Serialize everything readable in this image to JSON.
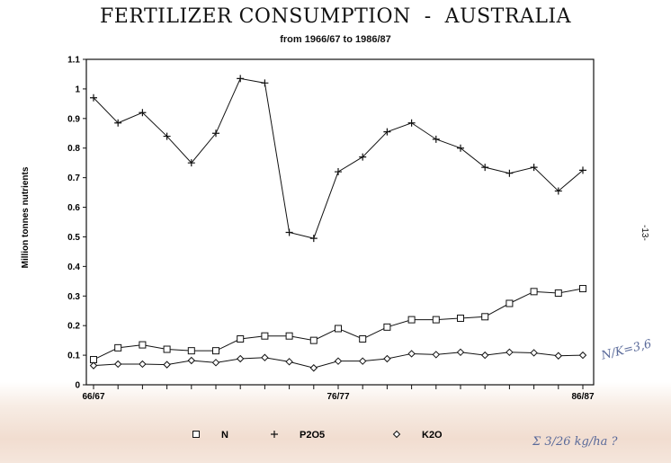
{
  "chart_data": {
    "type": "line",
    "title": "FERTILIZER CONSUMPTION  -  AUSTRALIA",
    "subtitle": "from 1966/67 to 1986/87",
    "ylabel": "Million tonnes nutrients",
    "xlabel": "",
    "ylim": [
      0,
      1.1
    ],
    "yticks": [
      "0",
      "0.1",
      "0.2",
      "0.3",
      "0.4",
      "0.5",
      "0.6",
      "0.7",
      "0.8",
      "0.9",
      "1",
      "1.1"
    ],
    "x": [
      "66/67",
      "67/68",
      "68/69",
      "69/70",
      "70/71",
      "71/72",
      "72/73",
      "73/74",
      "74/75",
      "75/76",
      "76/77",
      "77/78",
      "78/79",
      "79/80",
      "80/81",
      "81/82",
      "82/83",
      "83/84",
      "84/85",
      "85/86",
      "86/87"
    ],
    "xtick_labels": [
      "66/67",
      "76/77",
      "86/87"
    ],
    "series": [
      {
        "name": "N",
        "marker": "square",
        "values": [
          0.085,
          0.125,
          0.135,
          0.12,
          0.115,
          0.115,
          0.155,
          0.165,
          0.165,
          0.15,
          0.19,
          0.155,
          0.195,
          0.22,
          0.22,
          0.225,
          0.23,
          0.275,
          0.315,
          0.31,
          0.325
        ]
      },
      {
        "name": "P2O5",
        "marker": "plus",
        "values": [
          0.97,
          0.885,
          0.92,
          0.84,
          0.75,
          0.85,
          1.035,
          1.02,
          0.515,
          0.495,
          0.72,
          0.77,
          0.855,
          0.885,
          0.83,
          0.8,
          0.735,
          0.715,
          0.735,
          0.655,
          0.725
        ]
      },
      {
        "name": "K2O",
        "marker": "diamond",
        "values": [
          0.065,
          0.07,
          0.07,
          0.068,
          0.082,
          0.075,
          0.088,
          0.092,
          0.078,
          0.057,
          0.08,
          0.08,
          0.088,
          0.105,
          0.102,
          0.11,
          0.1,
          0.11,
          0.108,
          0.098,
          0.1
        ]
      }
    ],
    "grid": false,
    "legend_position": "bottom"
  },
  "page_number": "-13-",
  "annotations": {
    "ratio_note": "N/K=3,6",
    "bottom_note": "Σ 3/26 kg/ha ?"
  }
}
